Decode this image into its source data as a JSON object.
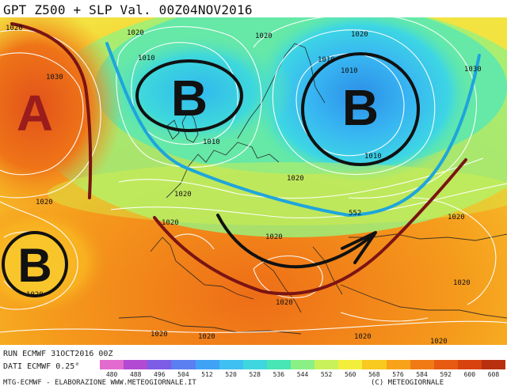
{
  "header": {
    "title": "GPT Z500 + SLP Val. 00Z04NOV2016"
  },
  "footer": {
    "run": "RUN ECMWF 31OCT2016 00Z",
    "dati": "DATI ECMWF 0.25°",
    "credit": "MTG-ECMWF  -  ELABORAZIONE WWW.METEOGIORNALE.IT",
    "copyright": "(C) METEOGIORNALE"
  },
  "pressure_centers": [
    {
      "label": "A",
      "kind": "high"
    },
    {
      "label": "B",
      "kind": "low-west"
    },
    {
      "label": "B",
      "kind": "low-north"
    },
    {
      "label": "B",
      "kind": "low-east"
    }
  ],
  "isobar_labels": [
    "1020",
    "1020",
    "1020",
    "1020",
    "1030",
    "1010",
    "1010",
    "1010",
    "1010",
    "1030",
    "1010",
    "1020",
    "1020",
    "1020",
    "1020",
    "1020",
    "1020",
    "1020",
    "1020",
    "1020",
    "1020",
    "1020",
    "1020",
    "1020"
  ],
  "isoheight_label": "552",
  "colorbar": {
    "ticks": [
      "480",
      "488",
      "496",
      "504",
      "512",
      "520",
      "528",
      "536",
      "544",
      "552",
      "560",
      "568",
      "576",
      "584",
      "592",
      "600",
      "608"
    ],
    "colors": [
      "#e36bd0",
      "#b24ad4",
      "#7d5ce6",
      "#5b7ef0",
      "#3fa2f5",
      "#3fc0f2",
      "#3ed7e0",
      "#47e6b4",
      "#8af086",
      "#c9f25a",
      "#f3ee3c",
      "#f8c91f",
      "#f8a21a",
      "#f27a15",
      "#e65a12",
      "#d8420f",
      "#b8300d"
    ]
  },
  "colors": {
    "jet_low": "#1ea5dc",
    "jet_high": "#7a1414",
    "high_center": "#9b1c1c",
    "arrow": "#111111"
  }
}
